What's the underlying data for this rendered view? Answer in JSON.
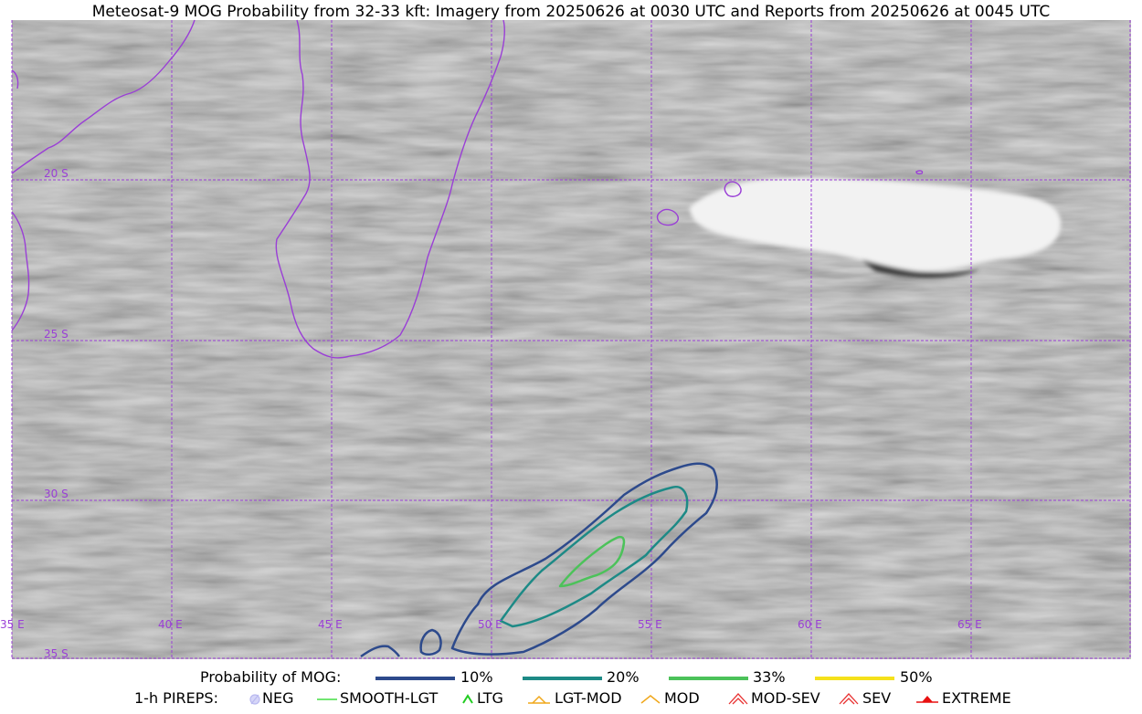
{
  "title": "Meteosat-9 MOG Probability from 32-33 kft: Imagery from 20250626 at 0030 UTC and Reports from 20250626 at 0045 UTC",
  "map": {
    "lat_labels": [
      "20 S",
      "25 S",
      "30 S",
      "35 S"
    ],
    "lon_labels": [
      "35 E",
      "40 E",
      "45 E",
      "50 E",
      "55 E",
      "60 E",
      "65 E"
    ],
    "colors": {
      "graticule": "#9a3fd6",
      "coastline": "#9a3fd6",
      "background": "#b4b4b4"
    }
  },
  "legend": {
    "prob_title": "Probability of MOG:",
    "prob_levels": [
      {
        "label": "10%",
        "color": "#2d4a8c"
      },
      {
        "label": "20%",
        "color": "#1d8a86"
      },
      {
        "label": "33%",
        "color": "#4cc25a"
      },
      {
        "label": "50%",
        "color": "#f5e11b"
      }
    ],
    "pireps_title": "1-h PIREPS:",
    "pireps": [
      {
        "label": "NEG",
        "color": "#b9b9f0",
        "icon": "neg-circle-icon"
      },
      {
        "label": "SMOOTH-LGT",
        "color": "#44dd44",
        "icon": "smooth-lgt-line-icon"
      },
      {
        "label": "LTG",
        "color": "#22cc22",
        "icon": "ltg-caret-icon"
      },
      {
        "label": "LGT-MOD",
        "color": "#f0a81c",
        "icon": "lgt-mod-caret-icon"
      },
      {
        "label": "MOD",
        "color": "#f0a81c",
        "icon": "mod-caret-icon"
      },
      {
        "label": "MOD-SEV",
        "color": "#e83030",
        "icon": "mod-sev-caret-icon"
      },
      {
        "label": "SEV",
        "color": "#e83030",
        "icon": "sev-caret-icon"
      },
      {
        "label": "EXTREME",
        "color": "#e81010",
        "icon": "extreme-caret-icon"
      }
    ]
  }
}
